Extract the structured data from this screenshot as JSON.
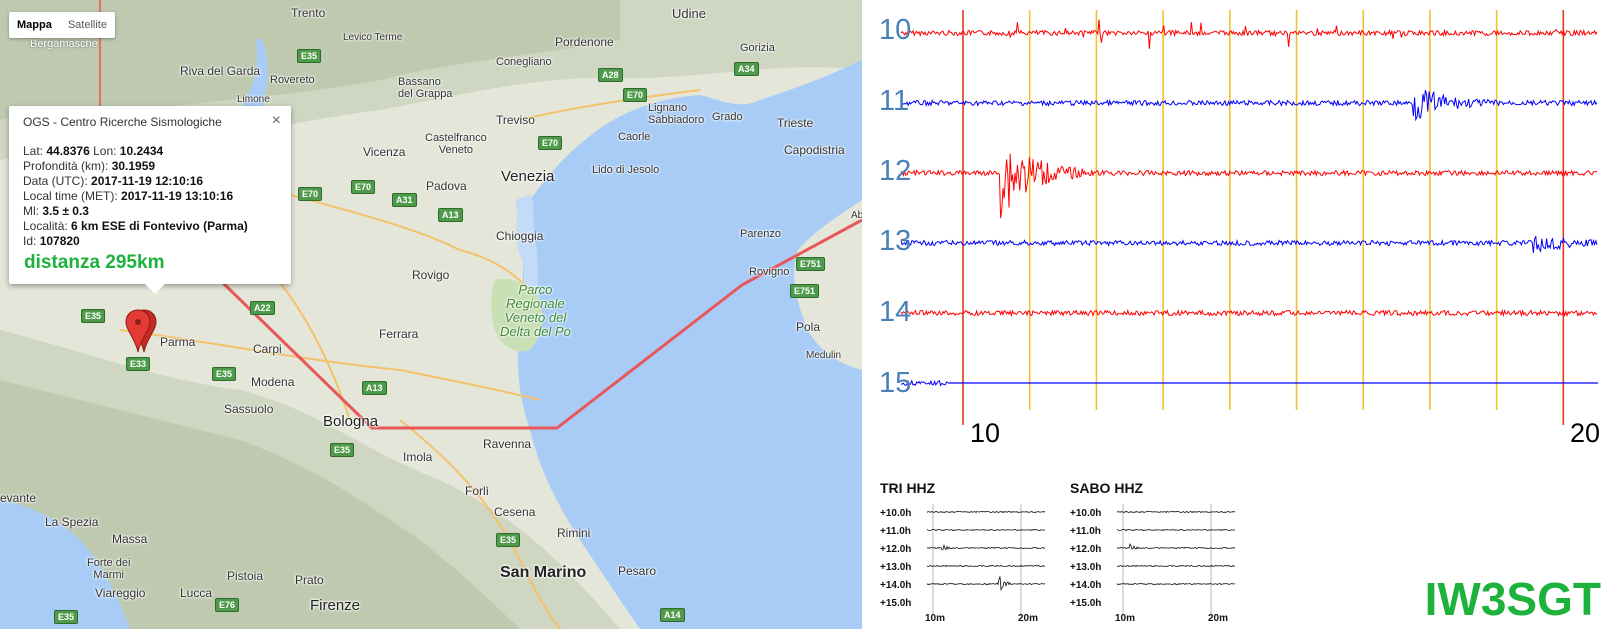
{
  "map": {
    "type_control": {
      "map_label": "Mappa",
      "satellite_label": "Satellite"
    },
    "places": {
      "trento": "Trento",
      "udine": "Udine",
      "pordenone": "Pordenone",
      "conegliano": "Conegliano",
      "gorizia": "Gorizia",
      "bergamasche": "Bergamasche",
      "riva": "Riva del Garda",
      "rovereto": "Rovereto",
      "levico": "Levico Terme",
      "bassano": "Bassano\ndel Grappa",
      "limone": "Limone",
      "treviso": "Treviso",
      "lignano": "Lignano\nSabbiadoro",
      "grado": "Grado",
      "caorle": "Caorle",
      "trieste": "Trieste",
      "capodistria": "Capodistria",
      "vicenza": "Vicenza",
      "castelfranco": "Castelfranco\nVeneto",
      "venezia": "Venezia",
      "lido": "Lido di Jesolo",
      "padova": "Padova",
      "chioggia": "Chioggia",
      "rovigo": "Rovigo",
      "parenzo": "Parenzo",
      "rovigno": "Rovigno",
      "pola": "Pola",
      "medulin": "Medulin",
      "parma": "Parma",
      "carpi": "Carpi",
      "ferrara": "Ferrara",
      "modena": "Modena",
      "sassuolo": "Sassuolo",
      "bologna": "Bologna",
      "ravenna": "Ravenna",
      "imola": "Imola",
      "forli": "Forlì",
      "cesena": "Cesena",
      "rimini": "Rimini",
      "sanmarino": "San Marino",
      "pesaro": "Pesaro",
      "laspezia": "La Spezia",
      "massa": "Massa",
      "fortedeimarmi": "Forte dei\nMarmi",
      "viareggio": "Viareggio",
      "pistoia": "Pistoia",
      "prato": "Prato",
      "lucca": "Lucca",
      "firenze": "Firenze",
      "levante": "evante",
      "abb": "Abb",
      "parco": "Parco\nRegionale\nVeneto del\nDelta del Po"
    },
    "roads": [
      "E35",
      "A28",
      "A34",
      "E70",
      "E70",
      "E70",
      "E70",
      "A31",
      "A13",
      "A22",
      "E35",
      "E33",
      "E35",
      "A13",
      "E751",
      "E751",
      "E35",
      "E35",
      "E76",
      "A14",
      "E35"
    ],
    "infowindow": {
      "title": "OGS - Centro Ricerche Sismologiche",
      "close": "×",
      "lat_label": "Lat:",
      "lat": "44.8376",
      "lon_label": "Lon:",
      "lon": "10.2434",
      "depth_label": "Profondità (km):",
      "depth": "30.1959",
      "date_label": "Data (UTC):",
      "date": "2017-11-19 12:10:16",
      "local_label": "Local time (MET):",
      "local": "2017-11-19 13:10:16",
      "ml_label": "Ml:",
      "ml": "3.5 ± 0.3",
      "loc_label": "Località:",
      "loc": "6 km ESE di Fontevivo (Parma)",
      "id_label": "Id:",
      "id": "107820",
      "distance": "distanza 295km"
    },
    "colors": {
      "route": "#e8575a",
      "sea": "#a8ccf6",
      "land": "#e4e6d9",
      "marker": "#d6322e"
    }
  },
  "chart_data": [
    {
      "type": "line",
      "title": "",
      "channels": [
        "10",
        "11",
        "12",
        "13",
        "14",
        "15"
      ],
      "series_colors": [
        "#ff0000",
        "#0000ff",
        "#ff0000",
        "#0000ff",
        "#ff0000",
        "#0000ff"
      ],
      "x_tick_labels": [
        "10",
        "20"
      ],
      "xlim": [
        10,
        20
      ],
      "events": [
        {
          "channel": "12",
          "x_minute": 11.2,
          "amplitude": "large"
        },
        {
          "channel": "11",
          "x_minute": 17.4,
          "amplitude": "medium"
        },
        {
          "channel": "13",
          "x_minute": 19.2,
          "amplitude": "small"
        }
      ],
      "markers_red_minutes": [
        10.6,
        19.6
      ],
      "markers_yellow_minutes": [
        11.6,
        12.6,
        13.6,
        14.6,
        15.6,
        16.6,
        17.6,
        18.6
      ]
    },
    {
      "type": "line",
      "title": "TRI HHZ",
      "rows": [
        "+10.0h",
        "+11.0h",
        "+12.0h",
        "+13.0h",
        "+14.0h",
        "+15.0h"
      ],
      "x_tick_labels": [
        "10m",
        "20m"
      ]
    },
    {
      "type": "line",
      "title": "SABO HHZ",
      "rows": [
        "+10.0h",
        "+11.0h",
        "+12.0h",
        "+13.0h",
        "+14.0h",
        "+15.0h"
      ],
      "x_tick_labels": [
        "10m",
        "20m"
      ]
    }
  ],
  "signature": "IW3SGT"
}
